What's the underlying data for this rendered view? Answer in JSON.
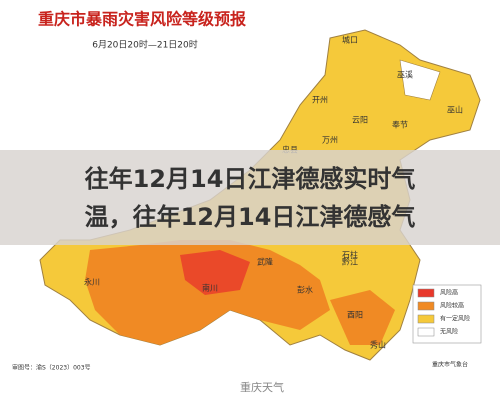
{
  "header": {
    "title": "重庆市暴雨灾害风险等级预报",
    "subtitle": "6月20日20时—21日20时"
  },
  "overlay": {
    "line1": "往年12月14日江津德感实时气",
    "line2": "温，往年12月14日江津德感气"
  },
  "legend": {
    "items": [
      {
        "label": "风险高",
        "color": "#e8382b"
      },
      {
        "label": "风险较高",
        "color": "#f08a24"
      },
      {
        "label": "有一定风险",
        "color": "#f5c93a"
      },
      {
        "label": "无风险",
        "color": "#ffffff"
      }
    ]
  },
  "districts": [
    "城口",
    "巫溪",
    "开州",
    "云阳",
    "奉节",
    "巫山",
    "万州",
    "忠县",
    "石柱",
    "永川",
    "南川",
    "武隆",
    "彭水",
    "黔江",
    "酉阳",
    "秀山"
  ],
  "footer": {
    "map_number": "审图号：渝S（2023）003号",
    "source": "重庆市气象台",
    "watermark": "重庆天气"
  }
}
